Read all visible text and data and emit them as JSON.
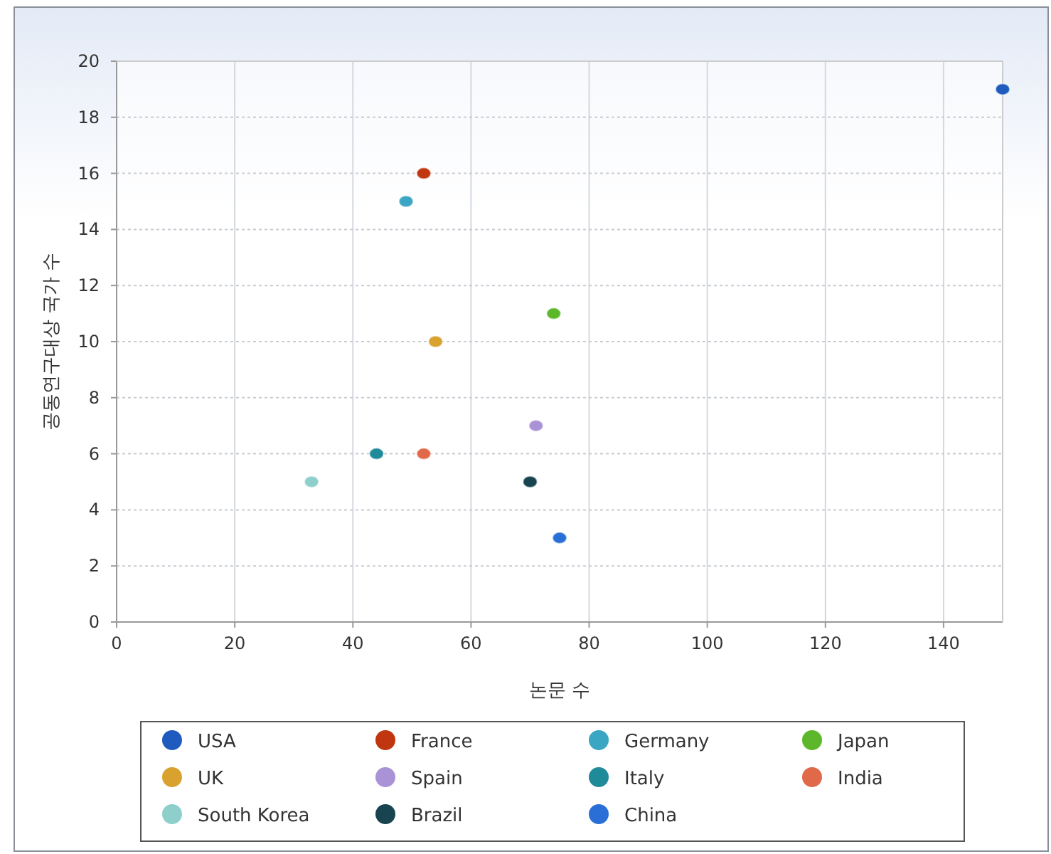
{
  "chart_data": {
    "type": "scatter",
    "xlabel": "논문 수",
    "ylabel": "공동연구대상 국가 수",
    "xlim": [
      0,
      150
    ],
    "ylim": [
      0,
      20
    ],
    "xticks": [
      0,
      20,
      40,
      60,
      80,
      100,
      120,
      140
    ],
    "yticks": [
      0,
      2,
      4,
      6,
      8,
      10,
      12,
      14,
      16,
      18,
      20
    ],
    "grid": true,
    "legend": "bottom",
    "marker": "circle",
    "series": [
      {
        "name": "USA",
        "color": "#1f5bbf",
        "x": [
          150
        ],
        "values": [
          19
        ]
      },
      {
        "name": "France",
        "color": "#c0360f",
        "x": [
          52
        ],
        "values": [
          16
        ]
      },
      {
        "name": "Germany",
        "color": "#3aa6c4",
        "x": [
          49
        ],
        "values": [
          15
        ]
      },
      {
        "name": "Japan",
        "color": "#5cb82a",
        "x": [
          74
        ],
        "values": [
          11
        ]
      },
      {
        "name": "UK",
        "color": "#d9a22e",
        "x": [
          54
        ],
        "values": [
          10
        ]
      },
      {
        "name": "Spain",
        "color": "#a993d6",
        "x": [
          71
        ],
        "values": [
          7
        ]
      },
      {
        "name": "Italy",
        "color": "#1f8a9a",
        "x": [
          44
        ],
        "values": [
          6
        ]
      },
      {
        "name": "India",
        "color": "#e0694a",
        "x": [
          52
        ],
        "values": [
          6
        ]
      },
      {
        "name": "South Korea",
        "color": "#8fcfcb",
        "x": [
          33
        ],
        "values": [
          5
        ]
      },
      {
        "name": "Brazil",
        "color": "#17444f",
        "x": [
          70
        ],
        "values": [
          5
        ]
      },
      {
        "name": "China",
        "color": "#2a6fd6",
        "x": [
          75
        ],
        "values": [
          3
        ]
      }
    ]
  }
}
